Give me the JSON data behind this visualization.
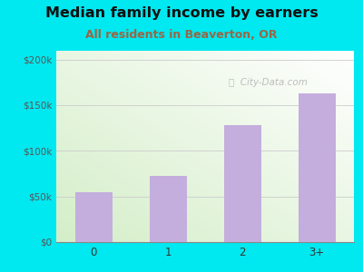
{
  "title": "Median family income by earners",
  "subtitle": "All residents in Beaverton, OR",
  "categories": [
    "0",
    "1",
    "2",
    "3+"
  ],
  "values": [
    55000,
    72000,
    128000,
    163000
  ],
  "bar_color": "#c4aedd",
  "title_fontsize": 11.5,
  "subtitle_fontsize": 9,
  "subtitle_color": "#996644",
  "title_color": "#111111",
  "background_outer": "#00e8f0",
  "ylim": [
    0,
    210000
  ],
  "yticks": [
    0,
    50000,
    100000,
    150000,
    200000
  ],
  "ytick_labels": [
    "$0",
    "$50k",
    "$100k",
    "$150k",
    "$200k"
  ],
  "watermark": "  City-Data.com"
}
